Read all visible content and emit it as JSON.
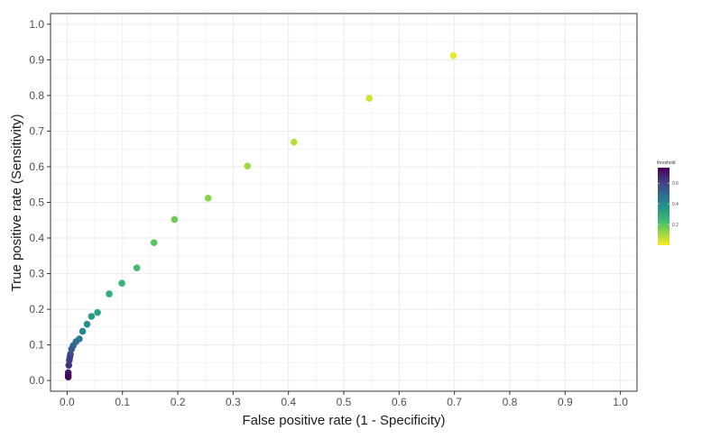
{
  "chart_data": {
    "type": "scatter",
    "xlabel": "False positive rate (1 - Specificity)",
    "ylabel": "True positive rate (Sensitivity)",
    "xlim": [
      0,
      1
    ],
    "ylim": [
      0,
      1
    ],
    "x_ticks": [
      "0.0",
      "0.1",
      "0.2",
      "0.3",
      "0.4",
      "0.5",
      "0.6",
      "0.7",
      "0.8",
      "0.9",
      "1.0"
    ],
    "y_ticks": [
      "0.0",
      "0.1",
      "0.2",
      "0.3",
      "0.4",
      "0.5",
      "0.6",
      "0.7",
      "0.8",
      "0.9",
      "1.0"
    ],
    "grid": true,
    "legend": {
      "title": "threshold",
      "position": "right",
      "ticks": [
        "0.2",
        "0.4",
        "0.6"
      ],
      "range": [
        0.0,
        0.75
      ],
      "colormap": [
        "#fde725",
        "#90d743",
        "#35b779",
        "#21918c",
        "#31688e",
        "#443983",
        "#440154"
      ]
    },
    "points": [
      {
        "x": 0.698,
        "y": 0.912,
        "threshold": 0.02
      },
      {
        "x": 0.546,
        "y": 0.792,
        "threshold": 0.05
      },
      {
        "x": 0.41,
        "y": 0.669,
        "threshold": 0.08
      },
      {
        "x": 0.326,
        "y": 0.602,
        "threshold": 0.11
      },
      {
        "x": 0.255,
        "y": 0.512,
        "threshold": 0.14
      },
      {
        "x": 0.194,
        "y": 0.452,
        "threshold": 0.17
      },
      {
        "x": 0.157,
        "y": 0.387,
        "threshold": 0.2
      },
      {
        "x": 0.126,
        "y": 0.316,
        "threshold": 0.23
      },
      {
        "x": 0.099,
        "y": 0.273,
        "threshold": 0.26
      },
      {
        "x": 0.076,
        "y": 0.243,
        "threshold": 0.29
      },
      {
        "x": 0.055,
        "y": 0.191,
        "threshold": 0.32
      },
      {
        "x": 0.044,
        "y": 0.18,
        "threshold": 0.35
      },
      {
        "x": 0.036,
        "y": 0.158,
        "threshold": 0.38
      },
      {
        "x": 0.028,
        "y": 0.138,
        "threshold": 0.41
      },
      {
        "x": 0.022,
        "y": 0.117,
        "threshold": 0.44
      },
      {
        "x": 0.016,
        "y": 0.109,
        "threshold": 0.47
      },
      {
        "x": 0.011,
        "y": 0.098,
        "threshold": 0.5
      },
      {
        "x": 0.008,
        "y": 0.088,
        "threshold": 0.53
      },
      {
        "x": 0.006,
        "y": 0.074,
        "threshold": 0.56
      },
      {
        "x": 0.005,
        "y": 0.066,
        "threshold": 0.59
      },
      {
        "x": 0.004,
        "y": 0.057,
        "threshold": 0.62
      },
      {
        "x": 0.003,
        "y": 0.043,
        "threshold": 0.65
      },
      {
        "x": 0.002,
        "y": 0.022,
        "threshold": 0.68
      },
      {
        "x": 0.002,
        "y": 0.015,
        "threshold": 0.71
      },
      {
        "x": 0.002,
        "y": 0.01,
        "threshold": 0.74
      }
    ]
  }
}
